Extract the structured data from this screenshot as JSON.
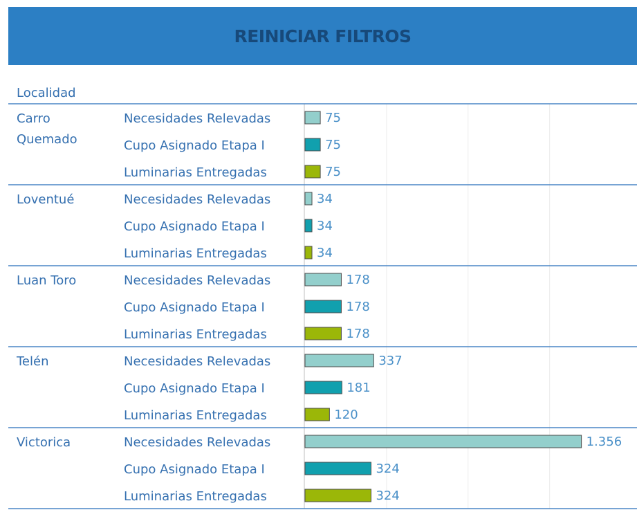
{
  "reset_button": {
    "label": "REINICIAR FILTROS"
  },
  "header": {
    "label": "Localidad"
  },
  "colors": {
    "banner_bg": "#2c7fc4",
    "banner_text": "#17497a",
    "text_blue": "#3570b0",
    "value_text": "#4a90c8",
    "separator": "#4a86c5",
    "gridline": "#ececec",
    "axis": "#bfbfbf",
    "bar_stroke": "#4d4d4d"
  },
  "chart_data": {
    "type": "bar",
    "orientation": "horizontal",
    "grouping_header": "Localidad",
    "x_range": [
      0,
      1400
    ],
    "gridlines_at": [
      0,
      400,
      800,
      1200
    ],
    "measures": [
      {
        "name": "Necesidades Relevadas",
        "color": "#93cfcc"
      },
      {
        "name": "Cupo Asignado Etapa I",
        "color": "#11a0ae"
      },
      {
        "name": "Luminarias Entregadas",
        "color": "#9bb708"
      }
    ],
    "groups": [
      {
        "name": [
          "Carro",
          "Quemado"
        ],
        "values": [
          75,
          75,
          75
        ],
        "labels": [
          "75",
          "75",
          "75"
        ]
      },
      {
        "name": [
          "Loventué"
        ],
        "values": [
          34,
          34,
          34
        ],
        "labels": [
          "34",
          "34",
          "34"
        ]
      },
      {
        "name": [
          "Luan Toro"
        ],
        "values": [
          178,
          178,
          178
        ],
        "labels": [
          "178",
          "178",
          "178"
        ]
      },
      {
        "name": [
          "Telén"
        ],
        "values": [
          337,
          181,
          120
        ],
        "labels": [
          "337",
          "181",
          "120"
        ]
      },
      {
        "name": [
          "Victorica"
        ],
        "values": [
          1356,
          324,
          324
        ],
        "labels": [
          "1.356",
          "324",
          "324"
        ]
      }
    ]
  }
}
